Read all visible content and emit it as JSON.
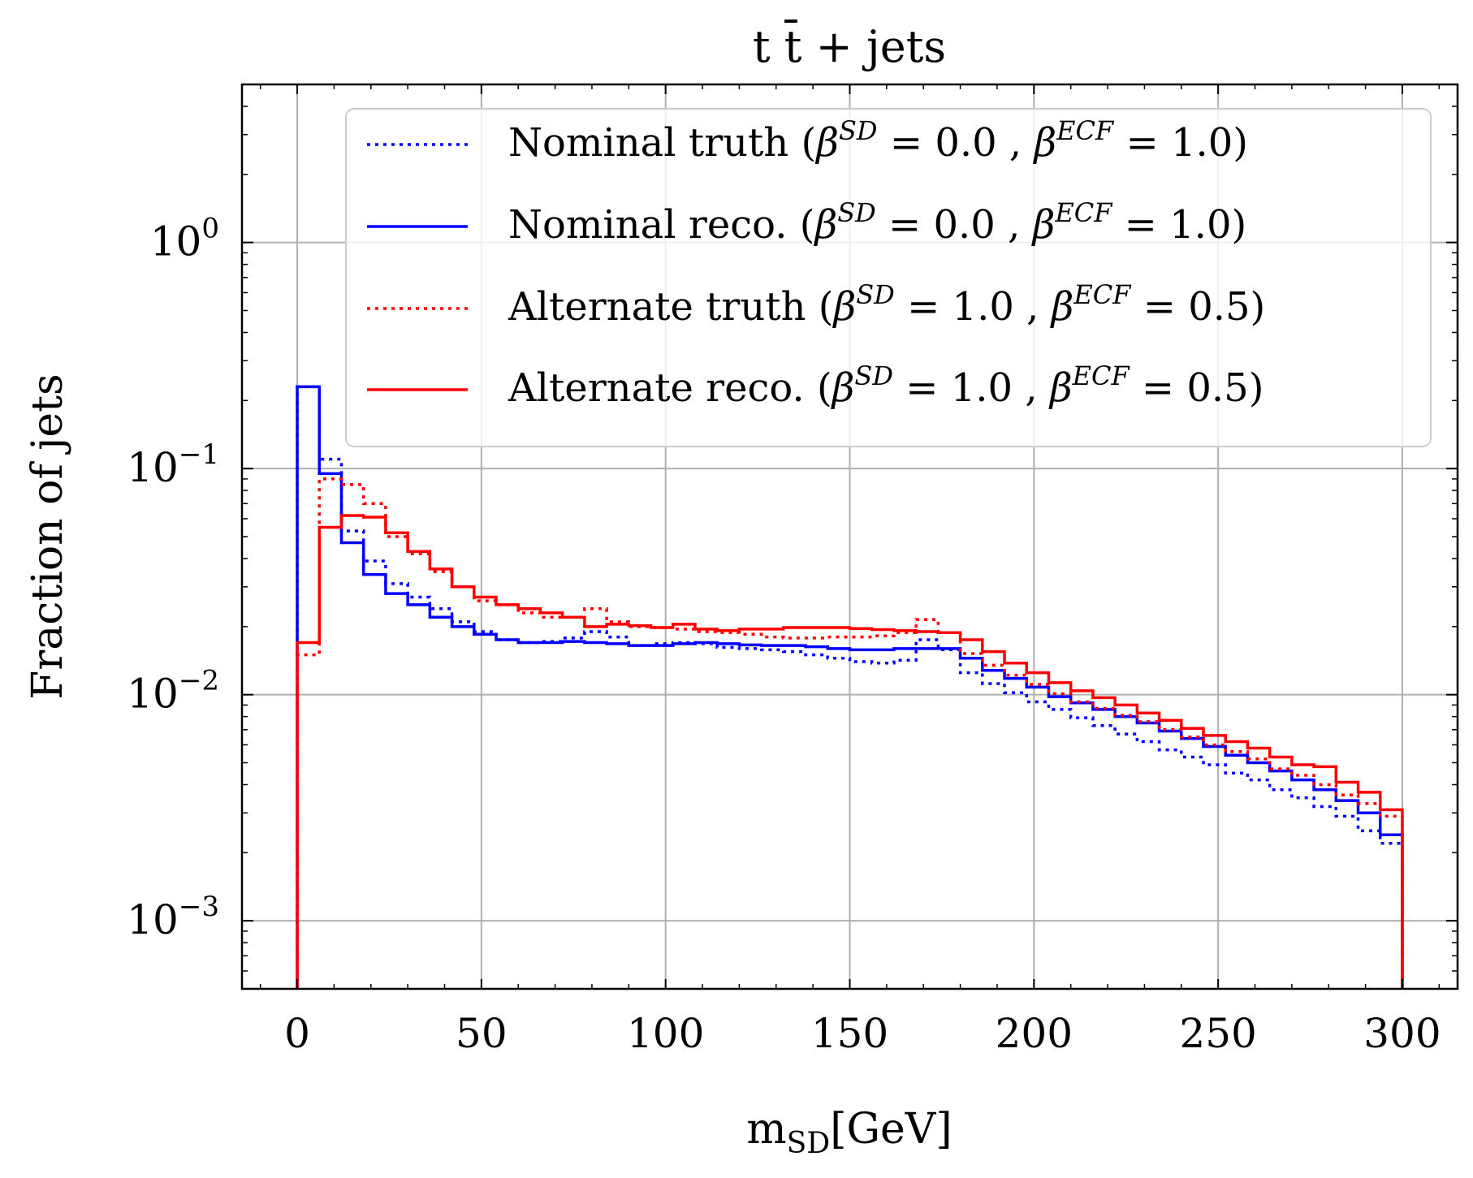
{
  "chart_data": {
    "type": "line",
    "title": "t t̄  +  jets",
    "xlabel": "m_SD [GeV]",
    "xlabel_main": "m",
    "xlabel_sub": "SD",
    "xlabel_unit": "[GeV]",
    "ylabel": "Fraction of jets",
    "xlim": [
      -15,
      315
    ],
    "ylim": [
      0.0005,
      5
    ],
    "yscale": "log",
    "grid": true,
    "legend_position": "top-right",
    "x_ticks": [
      0,
      50,
      100,
      150,
      200,
      250,
      300
    ],
    "y_ticks": [
      {
        "value": 1,
        "base": "10",
        "exp": "0"
      },
      {
        "value": 0.1,
        "base": "10",
        "exp": "−1"
      },
      {
        "value": 0.01,
        "base": "10",
        "exp": "−2"
      },
      {
        "value": 0.001,
        "base": "10",
        "exp": "−3"
      }
    ],
    "bin_edges": [
      0,
      6,
      12,
      18,
      24,
      30,
      36,
      42,
      48,
      54,
      60,
      66,
      72,
      78,
      84,
      90,
      96,
      102,
      108,
      114,
      120,
      126,
      132,
      138,
      144,
      150,
      156,
      162,
      168,
      174,
      180,
      186,
      192,
      198,
      204,
      210,
      216,
      222,
      228,
      234,
      240,
      246,
      252,
      258,
      264,
      270,
      276,
      282,
      288,
      294,
      300
    ],
    "series": [
      {
        "name": "Nominal truth",
        "legend": {
          "prefix": "Nominal truth (",
          "b1": "β",
          "sup1": "SD",
          "mid": " = 0.0 ,  ",
          "b2": "β",
          "sup2": "ECF",
          "suffix": " = 1.0)"
        },
        "color": "#0000ff",
        "style": "dotted",
        "values": [
          0.23,
          0.11,
          0.053,
          0.039,
          0.031,
          0.027,
          0.024,
          0.021,
          0.019,
          0.0175,
          0.017,
          0.0172,
          0.0178,
          0.019,
          0.018,
          0.0165,
          0.0168,
          0.017,
          0.0168,
          0.0162,
          0.016,
          0.0158,
          0.0155,
          0.015,
          0.0145,
          0.014,
          0.0138,
          0.0142,
          0.0175,
          0.0158,
          0.0125,
          0.0112,
          0.0102,
          0.0093,
          0.0086,
          0.0079,
          0.0073,
          0.0067,
          0.0062,
          0.0057,
          0.0053,
          0.0049,
          0.0045,
          0.0042,
          0.0038,
          0.0035,
          0.0032,
          0.0029,
          0.0025,
          0.0022
        ]
      },
      {
        "name": "Nominal reco.",
        "legend": {
          "prefix": "Nominal reco. (",
          "b1": "β",
          "sup1": "SD",
          "mid": " = 0.0 ,  ",
          "b2": "β",
          "sup2": "ECF",
          "suffix": " = 1.0)"
        },
        "color": "#0000ff",
        "style": "solid",
        "values": [
          0.23,
          0.095,
          0.047,
          0.034,
          0.028,
          0.025,
          0.022,
          0.02,
          0.0185,
          0.0175,
          0.017,
          0.017,
          0.0172,
          0.017,
          0.0168,
          0.0165,
          0.0165,
          0.0168,
          0.017,
          0.0168,
          0.0166,
          0.0165,
          0.0165,
          0.0163,
          0.016,
          0.0158,
          0.0158,
          0.016,
          0.016,
          0.016,
          0.0145,
          0.0128,
          0.0118,
          0.0108,
          0.0098,
          0.0092,
          0.0086,
          0.008,
          0.0075,
          0.0069,
          0.0064,
          0.0059,
          0.0054,
          0.005,
          0.0046,
          0.0042,
          0.0038,
          0.0034,
          0.003,
          0.0024
        ]
      },
      {
        "name": "Alternate truth",
        "legend": {
          "prefix": "Alternate truth (",
          "b1": "β",
          "sup1": "SD",
          "mid": " = 1.0 ,  ",
          "b2": "β",
          "sup2": "ECF",
          "suffix": " = 0.5)"
        },
        "color": "#ff0000",
        "style": "dotted",
        "values": [
          0.015,
          0.09,
          0.085,
          0.07,
          0.05,
          0.042,
          0.035,
          0.03,
          0.026,
          0.025,
          0.023,
          0.022,
          0.022,
          0.024,
          0.021,
          0.02,
          0.0198,
          0.0195,
          0.019,
          0.0188,
          0.0185,
          0.018,
          0.0178,
          0.0178,
          0.018,
          0.018,
          0.0182,
          0.0188,
          0.0215,
          0.0188,
          0.0152,
          0.0135,
          0.0122,
          0.0111,
          0.0101,
          0.0093,
          0.0087,
          0.0081,
          0.0076,
          0.007,
          0.0065,
          0.006,
          0.0056,
          0.0052,
          0.0047,
          0.0044,
          0.004,
          0.0036,
          0.0033,
          0.0029
        ]
      },
      {
        "name": "Alternate reco.",
        "legend": {
          "prefix": "Alternate reco. (",
          "b1": "β",
          "sup1": "SD",
          "mid": " = 1.0 ,  ",
          "b2": "β",
          "sup2": "ECF",
          "suffix": " = 0.5)"
        },
        "color": "#ff0000",
        "style": "solid",
        "values": [
          0.017,
          0.055,
          0.062,
          0.061,
          0.052,
          0.043,
          0.036,
          0.03,
          0.027,
          0.025,
          0.024,
          0.023,
          0.022,
          0.02,
          0.0205,
          0.0202,
          0.0198,
          0.0205,
          0.0195,
          0.0192,
          0.0195,
          0.0195,
          0.0198,
          0.0198,
          0.0198,
          0.0196,
          0.0194,
          0.0192,
          0.019,
          0.0188,
          0.0175,
          0.0155,
          0.0138,
          0.0125,
          0.0113,
          0.0104,
          0.0097,
          0.009,
          0.0083,
          0.0077,
          0.0071,
          0.0066,
          0.0062,
          0.0058,
          0.0053,
          0.0049,
          0.0048,
          0.0041,
          0.0037,
          0.0031
        ]
      }
    ]
  }
}
